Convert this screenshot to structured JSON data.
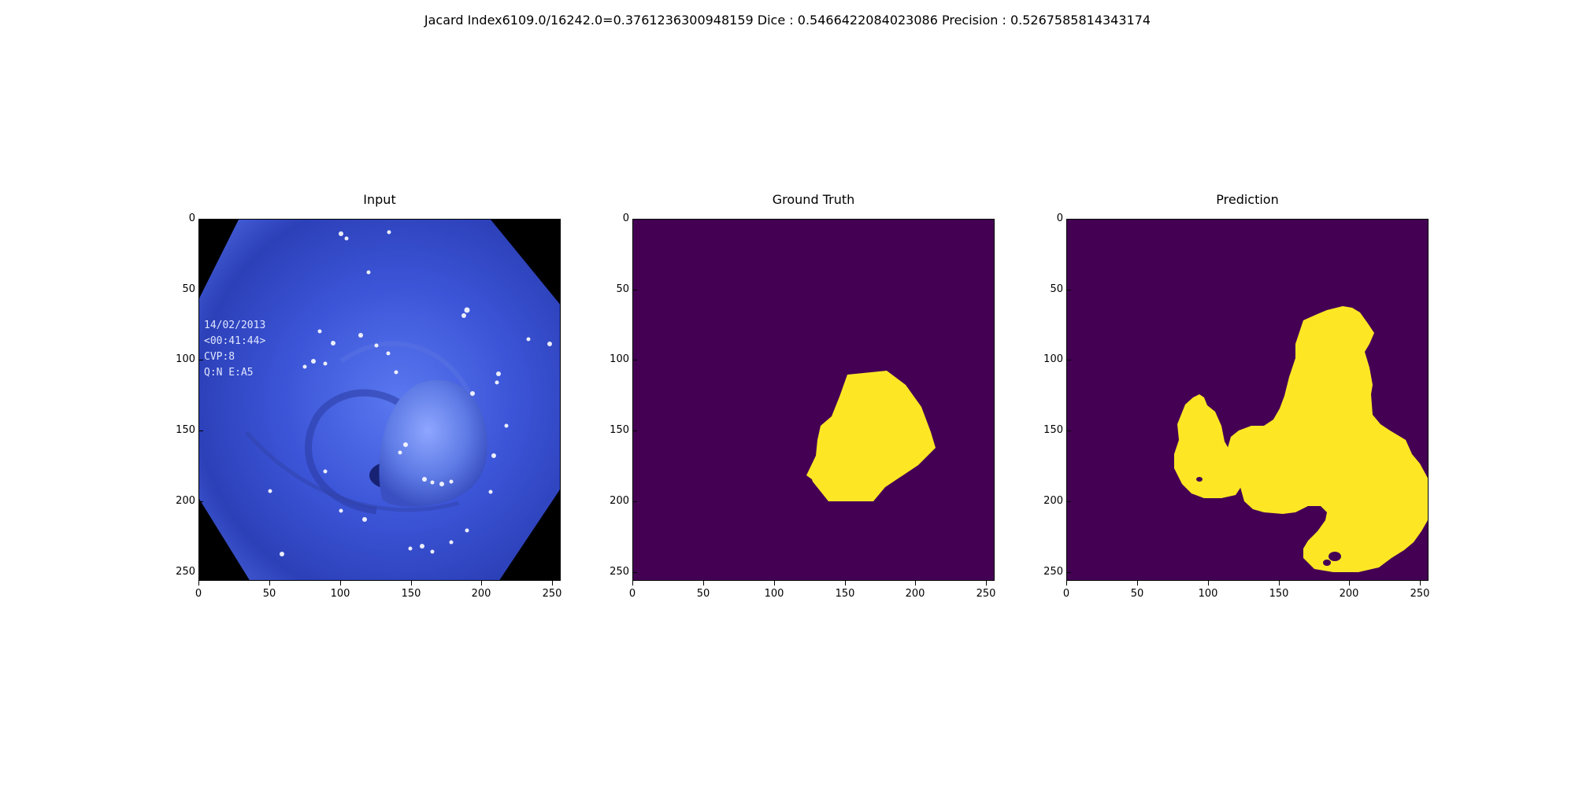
{
  "suptitle": "Jacard Index6109.0/16242.0=0.3761236300948159 Dice : 0.5466422084023086 Precision : 0.5267585814343174",
  "panels": [
    {
      "title": "Input"
    },
    {
      "title": "Ground Truth"
    },
    {
      "title": "Prediction"
    }
  ],
  "axis": {
    "xticks": [
      "0",
      "50",
      "100",
      "150",
      "200",
      "250"
    ],
    "yticks": [
      "0",
      "50",
      "100",
      "150",
      "200",
      "250"
    ]
  },
  "colors": {
    "mask_background": "#440154",
    "mask_foreground": "#fde725",
    "tissue": "#3d55d6"
  },
  "input_overlay": {
    "date": "14/02/2013",
    "time": "<00:41:44>",
    "cvp": "CVP:8",
    "code": "Q:N      E:A5"
  }
}
